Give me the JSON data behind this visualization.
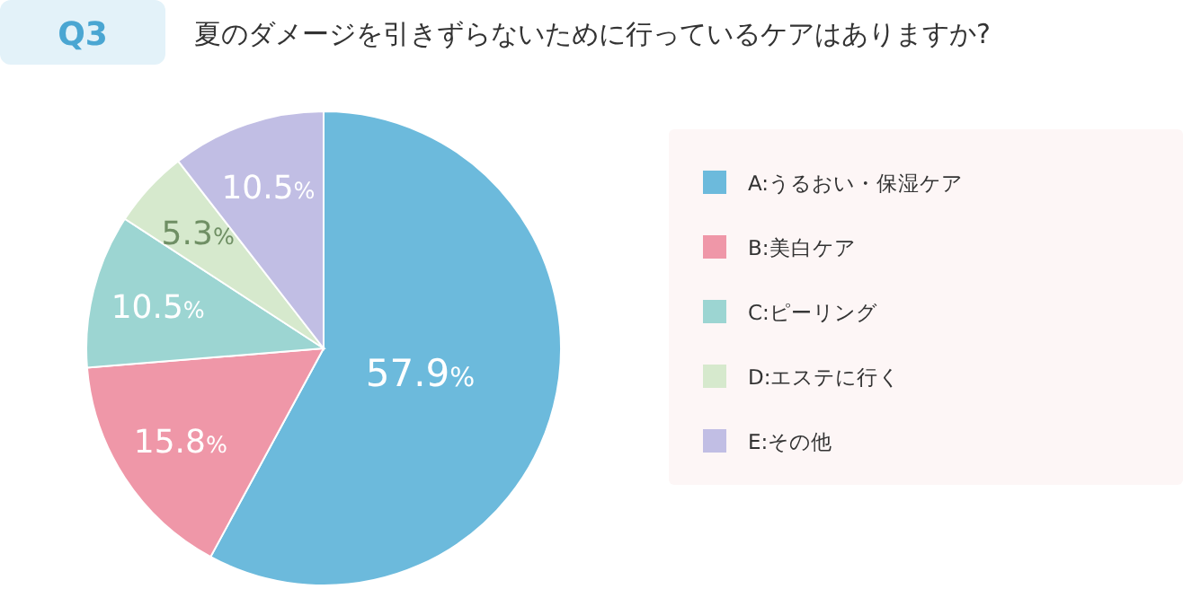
{
  "chart_data": {
    "type": "pie",
    "title": "Q3",
    "subtitle": "夏のダメージを引きずらないために行っているケアはありますか?",
    "categories": [
      "A:うるおい・保湿ケア",
      "B:美白ケア",
      "C:ピーリング",
      "D:エステに行く",
      "E:その他"
    ],
    "values": [
      57.9,
      15.8,
      10.5,
      5.3,
      10.5
    ],
    "value_labels": [
      "57.9%",
      "15.8%",
      "10.5%",
      "5.3%",
      "10.5%"
    ],
    "colors": [
      "#6cbadc",
      "#ef97a8",
      "#9cd5d2",
      "#d6e9cd",
      "#c1bee4"
    ],
    "legend": "right"
  }
}
